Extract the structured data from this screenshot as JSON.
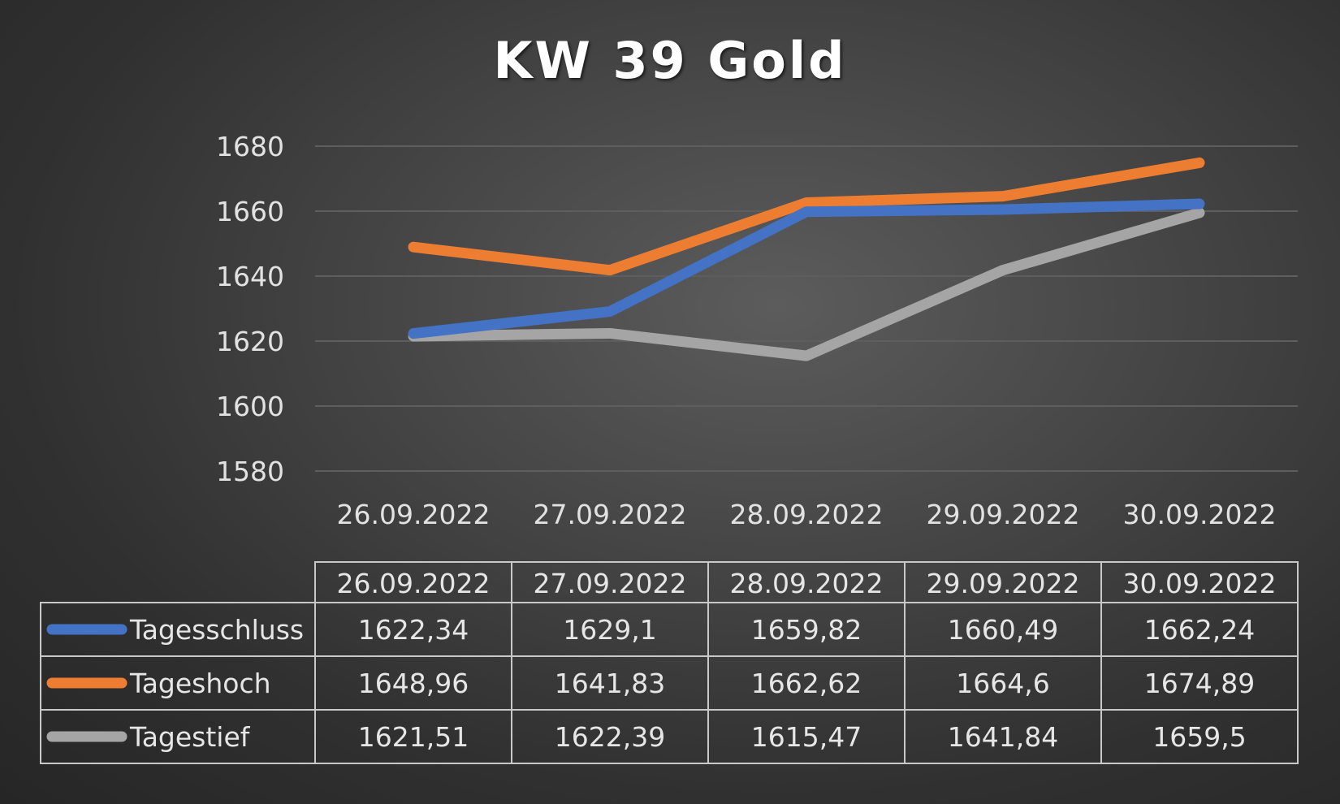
{
  "chart_data": {
    "type": "line",
    "title": "KW 39 Gold",
    "xlabel": "",
    "ylabel": "",
    "categories": [
      "26.09.2022",
      "27.09.2022",
      "28.09.2022",
      "29.09.2022",
      "30.09.2022"
    ],
    "ylim": [
      1580,
      1680
    ],
    "yticks": [
      "1680",
      "1660",
      "1640",
      "1620",
      "1600",
      "1580"
    ],
    "grid": true,
    "legend": "data-table",
    "series": [
      {
        "name": "Tagesschluss",
        "color": "#4472c4",
        "values": [
          1622.34,
          1629.1,
          1659.82,
          1660.49,
          1662.24
        ],
        "labels": [
          "1622,34",
          "1629,1",
          "1659,82",
          "1660,49",
          "1662,24"
        ]
      },
      {
        "name": "Tageshoch",
        "color": "#ed7d31",
        "values": [
          1648.96,
          1641.83,
          1662.62,
          1664.6,
          1674.89
        ],
        "labels": [
          "1648,96",
          "1641,83",
          "1662,62",
          "1664,6",
          "1674,89"
        ]
      },
      {
        "name": "Tagestief",
        "color": "#a5a5a5",
        "values": [
          1621.51,
          1622.39,
          1615.47,
          1641.84,
          1659.5
        ],
        "labels": [
          "1621,51",
          "1622,39",
          "1615,47",
          "1641,84",
          "1659,5"
        ]
      }
    ]
  }
}
